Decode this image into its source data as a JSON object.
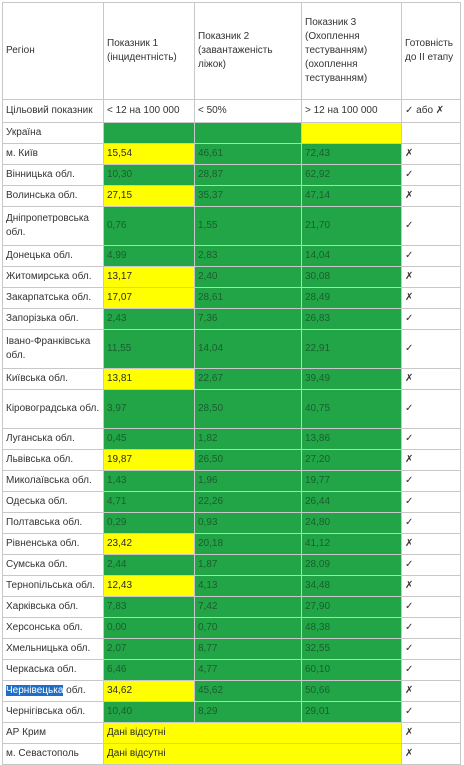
{
  "headers": [
    "Регіон",
    "Показник 1 (інцидентність)",
    "Показник 2 (завантаженість ліжок)",
    "Показник 3 (Охоплення тестуванням) (охоплення тестуванням)",
    "Готовність до ІІ етапу"
  ],
  "target_row": {
    "label": "Цільовий показник",
    "p1": "< 12 на 100 000",
    "p2": "< 50%",
    "p3": "> 12 на 100 000",
    "ready": "✓ або ✗"
  },
  "colors": {
    "green": "#22a546",
    "yellow": "#ffff00",
    "selection": "#1e6ec8"
  },
  "rows": [
    {
      "region": "Україна",
      "p1": "",
      "p2": "",
      "p3": "",
      "ready": "",
      "c1": "green",
      "c2": "green",
      "c3": "yellow",
      "h": 1
    },
    {
      "region": "м. Київ",
      "p1": "15,54",
      "p2": "46,61",
      "p3": "72,43",
      "ready": "✗",
      "c1": "yellow",
      "c2": "green",
      "c3": "green",
      "h": 1
    },
    {
      "region": "Вінницька обл.",
      "p1": "10,30",
      "p2": "28,87",
      "p3": "62,92",
      "ready": "✓",
      "c1": "green",
      "c2": "green",
      "c3": "green",
      "h": 1
    },
    {
      "region": "Волинська обл.",
      "p1": "27,15",
      "p2": "35,37",
      "p3": "47,14",
      "ready": "✗",
      "c1": "yellow",
      "c2": "green",
      "c3": "green",
      "h": 1
    },
    {
      "region": "Дніпропетровська обл.",
      "p1": "0,76",
      "p2": "1,55",
      "p3": "21,70",
      "ready": "✓",
      "c1": "green",
      "c2": "green",
      "c3": "green",
      "h": 2
    },
    {
      "region": "Донецька обл.",
      "p1": "4,99",
      "p2": "2,83",
      "p3": "14,04",
      "ready": "✓",
      "c1": "green",
      "c2": "green",
      "c3": "green",
      "h": 1
    },
    {
      "region": "Житомирська обл.",
      "p1": "13,17",
      "p2": "2,40",
      "p3": "30,08",
      "ready": "✗",
      "c1": "yellow",
      "c2": "green",
      "c3": "green",
      "h": 1
    },
    {
      "region": "Закарпатська обл.",
      "p1": "17,07",
      "p2": "28,61",
      "p3": "28,49",
      "ready": "✗",
      "c1": "yellow",
      "c2": "green",
      "c3": "green",
      "h": 1
    },
    {
      "region": "Запорізька обл.",
      "p1": "2,43",
      "p2": "7,36",
      "p3": "26,83",
      "ready": "✓",
      "c1": "green",
      "c2": "green",
      "c3": "green",
      "h": 1
    },
    {
      "region": "Івано-Франківська обл.",
      "p1": "11,55",
      "p2": "14,04",
      "p3": "22,91",
      "ready": "✓",
      "c1": "green",
      "c2": "green",
      "c3": "green",
      "h": 2
    },
    {
      "region": "Київська обл.",
      "p1": "13,81",
      "p2": "22,67",
      "p3": "39,49",
      "ready": "✗",
      "c1": "yellow",
      "c2": "green",
      "c3": "green",
      "h": 1
    },
    {
      "region": "Кіровоградська обл.",
      "p1": "3,97",
      "p2": "28,50",
      "p3": "40,75",
      "ready": "✓",
      "c1": "green",
      "c2": "green",
      "c3": "green",
      "h": 2
    },
    {
      "region": "Луганська обл.",
      "p1": "0,45",
      "p2": "1,82",
      "p3": "13,86",
      "ready": "✓",
      "c1": "green",
      "c2": "green",
      "c3": "green",
      "h": 1
    },
    {
      "region": "Львівська обл.",
      "p1": "19,87",
      "p2": "26,50",
      "p3": "27,20",
      "ready": "✗",
      "c1": "yellow",
      "c2": "green",
      "c3": "green",
      "h": 1
    },
    {
      "region": "Миколаївська обл.",
      "p1": "1,43",
      "p2": "1,96",
      "p3": "19,77",
      "ready": "✓",
      "c1": "green",
      "c2": "green",
      "c3": "green",
      "h": 1
    },
    {
      "region": "Одеська обл.",
      "p1": "4,71",
      "p2": "22,26",
      "p3": "26,44",
      "ready": "✓",
      "c1": "green",
      "c2": "green",
      "c3": "green",
      "h": 1
    },
    {
      "region": "Полтавська обл.",
      "p1": "0,29",
      "p2": "0,93",
      "p3": "24,80",
      "ready": "✓",
      "c1": "green",
      "c2": "green",
      "c3": "green",
      "h": 1
    },
    {
      "region": "Рівненська обл.",
      "p1": "23,42",
      "p2": "20,18",
      "p3": "41,12",
      "ready": "✗",
      "c1": "yellow",
      "c2": "green",
      "c3": "green",
      "h": 1
    },
    {
      "region": "Сумська обл.",
      "p1": "2,44",
      "p2": "1,87",
      "p3": "28,09",
      "ready": "✓",
      "c1": "green",
      "c2": "green",
      "c3": "green",
      "h": 1
    },
    {
      "region": "Тернопільська обл.",
      "p1": "12,43",
      "p2": "4,13",
      "p3": "34,48",
      "ready": "✗",
      "c1": "yellow",
      "c2": "green",
      "c3": "green",
      "h": 1
    },
    {
      "region": "Харківська обл.",
      "p1": "7,83",
      "p2": "7,42",
      "p3": "27,90",
      "ready": "✓",
      "c1": "green",
      "c2": "green",
      "c3": "green",
      "h": 1
    },
    {
      "region": "Херсонська обл.",
      "p1": "0,00",
      "p2": "0,70",
      "p3": "48,38",
      "ready": "✓",
      "c1": "green",
      "c2": "green",
      "c3": "green",
      "h": 1
    },
    {
      "region": "Хмельницька обл.",
      "p1": "2,07",
      "p2": "8,77",
      "p3": "32,55",
      "ready": "✓",
      "c1": "green",
      "c2": "green",
      "c3": "green",
      "h": 1
    },
    {
      "region": "Черкаська обл.",
      "p1": "6,46",
      "p2": "4,77",
      "p3": "60,10",
      "ready": "✓",
      "c1": "green",
      "c2": "green",
      "c3": "green",
      "h": 1
    },
    {
      "region_selected": "Чернівецька",
      "region_rest": " обл.",
      "p1": "34,62",
      "p2": "45,62",
      "p3": "50,66",
      "ready": "✗",
      "c1": "yellow",
      "c2": "green",
      "c3": "green",
      "h": 1
    },
    {
      "region": "Чернігівська обл.",
      "p1": "10,40",
      "p2": "8,29",
      "p3": "29,01",
      "ready": "✓",
      "c1": "green",
      "c2": "green",
      "c3": "green",
      "h": 1
    },
    {
      "region": "АР Крим",
      "missing": "Дані відсутні",
      "ready": "✗",
      "h": 1
    },
    {
      "region": "м. Севастополь",
      "missing": "Дані відсутні",
      "ready": "✗",
      "h": 1
    }
  ]
}
